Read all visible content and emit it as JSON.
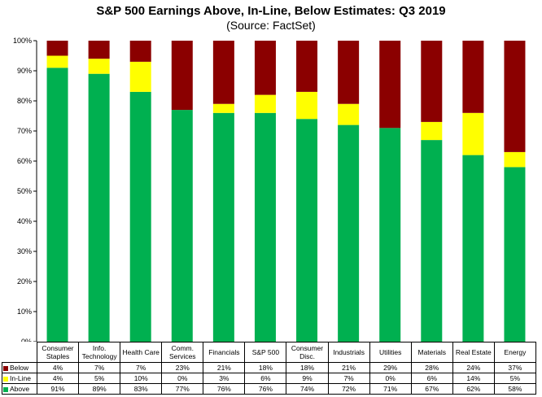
{
  "header": {
    "title": "S&P 500 Earnings Above, In-Line, Below Estimates: Q3 2019",
    "subtitle": "(Source: FactSet)"
  },
  "colors": {
    "above": "#00b050",
    "inline": "#ffff00",
    "below": "#8b0000"
  },
  "chart_data": {
    "type": "bar",
    "stacked": true,
    "title": "S&P 500 Earnings Above, In-Line, Below Estimates: Q3 2019",
    "subtitle": "(Source: FactSet)",
    "categories": [
      "Consumer Staples",
      "Info. Technology",
      "Health Care",
      "Comm. Services",
      "Financials",
      "S&P 500",
      "Consumer Disc.",
      "Industrials",
      "Utilities",
      "Materials",
      "Real Estate",
      "Energy"
    ],
    "ylim": [
      0,
      100
    ],
    "yticks": [
      "0%",
      "10%",
      "20%",
      "30%",
      "40%",
      "50%",
      "60%",
      "70%",
      "80%",
      "90%",
      "100%"
    ],
    "grid": false,
    "legend": "data-table",
    "series": [
      {
        "name": "Below",
        "values": [
          4,
          7,
          7,
          23,
          21,
          18,
          18,
          21,
          29,
          28,
          24,
          37
        ],
        "labels": [
          "4%",
          "7%",
          "7%",
          "23%",
          "21%",
          "18%",
          "18%",
          "21%",
          "29%",
          "28%",
          "24%",
          "37%"
        ]
      },
      {
        "name": "In-Line",
        "values": [
          4,
          5,
          10,
          0,
          3,
          6,
          9,
          7,
          0,
          6,
          14,
          5
        ],
        "labels": [
          "4%",
          "5%",
          "10%",
          "0%",
          "3%",
          "6%",
          "9%",
          "7%",
          "0%",
          "6%",
          "14%",
          "5%"
        ]
      },
      {
        "name": "Above",
        "values": [
          91,
          89,
          83,
          77,
          76,
          76,
          74,
          72,
          71,
          67,
          62,
          58
        ],
        "labels": [
          "91%",
          "89%",
          "83%",
          "77%",
          "76%",
          "76%",
          "74%",
          "72%",
          "71%",
          "67%",
          "62%",
          "58%"
        ]
      }
    ]
  }
}
